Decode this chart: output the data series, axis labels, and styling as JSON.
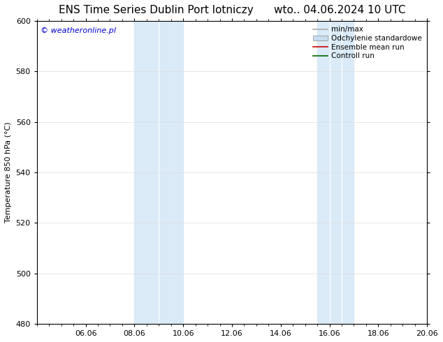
{
  "title": "ENS Time Series Dublin Port lotniczy      wto.. 04.06.2024 10 UTC",
  "ylabel": "Temperature 850 hPa (°C)",
  "xlim_start": 4.0,
  "xlim_end": 20.0,
  "ylim": [
    480,
    600
  ],
  "yticks": [
    480,
    500,
    520,
    540,
    560,
    580,
    600
  ],
  "xtick_labels": [
    "06.06",
    "08.06",
    "10.06",
    "12.06",
    "14.06",
    "16.06",
    "18.06",
    "20.06"
  ],
  "xtick_positions": [
    6,
    8,
    10,
    12,
    14,
    16,
    18,
    20
  ],
  "background_color": "#ffffff",
  "shaded_regions": [
    {
      "x_start": 8.0,
      "x_end": 9.0
    },
    {
      "x_start": 9.5,
      "x_end": 10.5
    },
    {
      "x_start": 15.5,
      "x_end": 16.5
    },
    {
      "x_start": 16.5,
      "x_end": 17.0
    }
  ],
  "shaded_color": "#daeaf7",
  "legend_items": [
    {
      "label": "min/max",
      "color": "#aaaaaa",
      "lw": 1.2,
      "style": "solid"
    },
    {
      "label": "Odchylenie standardowe",
      "color": "#c8ddf0",
      "lw": 8,
      "style": "solid"
    },
    {
      "label": "Ensemble mean run",
      "color": "#cc0000",
      "lw": 1.2,
      "style": "solid"
    },
    {
      "label": "Controll run",
      "color": "#006600",
      "lw": 1.2,
      "style": "solid"
    }
  ],
  "watermark_text": "© weatheronline.pl",
  "watermark_color": "#0000cc",
  "font_size_title": 11,
  "font_size_tick": 8,
  "font_size_ylabel": 8,
  "font_size_legend": 7.5,
  "font_size_watermark": 8,
  "grid_color": "#dddddd",
  "grid_lw": 0.5,
  "tick_color": "#000000"
}
